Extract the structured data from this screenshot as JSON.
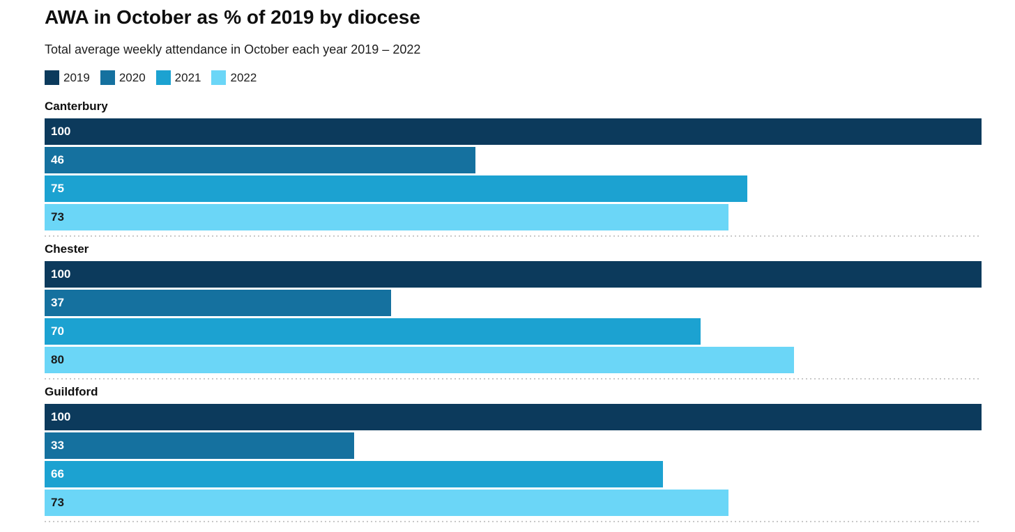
{
  "header": {
    "title": "AWA in October as % of 2019 by diocese",
    "subtitle": "Total average weekly attendance in October each year 2019 – 2022"
  },
  "legend": [
    {
      "label": "2019",
      "color": "#0c3a5c"
    },
    {
      "label": "2020",
      "color": "#15719f"
    },
    {
      "label": "2021",
      "color": "#1ca2d1"
    },
    {
      "label": "2022",
      "color": "#6bd6f7"
    }
  ],
  "colors": {
    "background": "#ffffff",
    "separator_dots": "#c8c8c8",
    "text": "#1a1a1a"
  },
  "chart_data": {
    "type": "bar",
    "orientation": "horizontal",
    "title": "AWA in October as % of 2019 by diocese",
    "subtitle": "Total average weekly attendance in October each year 2019 – 2022",
    "categories": [
      "Canterbury",
      "Chester",
      "Guildford"
    ],
    "series": [
      {
        "name": "2019",
        "color": "#0c3a5c",
        "value_label_color": "#ffffff",
        "values": [
          100,
          100,
          100
        ]
      },
      {
        "name": "2020",
        "color": "#15719f",
        "value_label_color": "#ffffff",
        "values": [
          46,
          37,
          33
        ]
      },
      {
        "name": "2021",
        "color": "#1ca2d1",
        "value_label_color": "#ffffff",
        "values": [
          75,
          70,
          66
        ]
      },
      {
        "name": "2022",
        "color": "#6bd6f7",
        "value_label_color": "#1a1a1a",
        "values": [
          73,
          80,
          73
        ]
      }
    ],
    "xlim": [
      0,
      100
    ],
    "value_labels": true,
    "grid": false,
    "legend_position": "top",
    "separator_after_each_group": true
  }
}
